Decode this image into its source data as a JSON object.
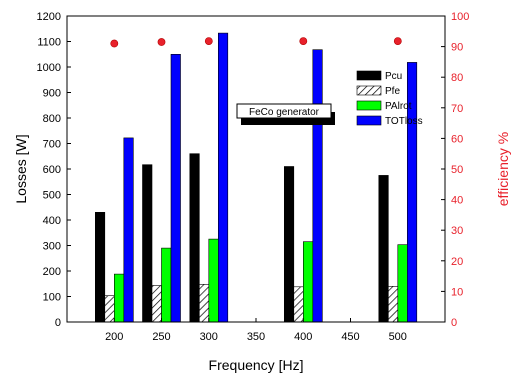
{
  "chart_data": {
    "type": "bar",
    "categories": [
      200,
      250,
      300,
      400,
      500
    ],
    "series": [
      {
        "name": "Pcu",
        "values": [
          430,
          617,
          660,
          610,
          575
        ],
        "color": "#000000",
        "pattern": "solid"
      },
      {
        "name": "Pfe",
        "values": [
          103,
          143,
          148,
          138,
          140
        ],
        "color": "#ffffff",
        "pattern": "hatch"
      },
      {
        "name": "PAlrot",
        "values": [
          188,
          290,
          325,
          315,
          303
        ],
        "color": "#00ff00",
        "pattern": "solid"
      },
      {
        "name": "TOTloss",
        "values": [
          722,
          1050,
          1133,
          1068,
          1018
        ],
        "color": "#0000ff",
        "pattern": "solid"
      }
    ],
    "efficiency": {
      "x": [
        200,
        250,
        300,
        400,
        500
      ],
      "values": [
        91,
        91.5,
        91.8,
        91.8,
        91.8
      ],
      "color": "#e8212b"
    },
    "xlabel": "Frequency [Hz]",
    "ylabel": "Losses [W]",
    "y2label": "efficiency %",
    "xlim": [
      150,
      550
    ],
    "ylim": [
      0,
      1200
    ],
    "y2lim": [
      0,
      100
    ],
    "xticks": [
      200,
      250,
      300,
      350,
      400,
      450,
      500
    ],
    "yticks": [
      0,
      100,
      200,
      300,
      400,
      500,
      600,
      700,
      800,
      900,
      1000,
      1100,
      1200
    ],
    "y2ticks": [
      0,
      10,
      20,
      30,
      40,
      50,
      60,
      70,
      80,
      90,
      100
    ],
    "annotation": "FeCo generator",
    "legend_position": "top-right"
  }
}
